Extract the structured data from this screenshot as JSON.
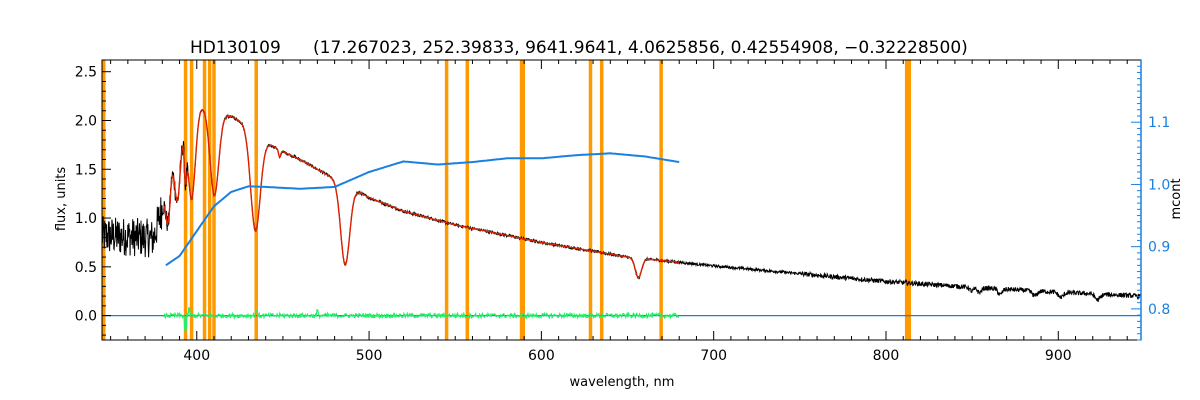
{
  "colors": {
    "observed": "#000000",
    "model": "#dd2200",
    "mcont": "#1a80e0",
    "residual": "#22ee66",
    "mask": "#ff9900",
    "axis": "#000000"
  },
  "chart_data": {
    "type": "line",
    "title_star": "HD130109",
    "title_params": "(17.267023, 252.39833, 9641.9641, 4.0625856, 0.42554908, −0.32228500)",
    "xlabel": "wavelength, nm",
    "ylabel": "flux, units",
    "ylabel_right": "mcont",
    "xlim": [
      345,
      948
    ],
    "ylim": [
      -0.25,
      2.62
    ],
    "ylim_right": [
      0.75,
      1.2
    ],
    "xticks": [
      400,
      500,
      600,
      700,
      800,
      900
    ],
    "xtick_labels": [
      "400",
      "500",
      "600",
      "700",
      "800",
      "900"
    ],
    "yticks": [
      0.0,
      0.5,
      1.0,
      1.5,
      2.0,
      2.5
    ],
    "ytick_labels": [
      "0.0",
      "0.5",
      "1.0",
      "1.5",
      "2.0",
      "2.5"
    ],
    "yticks_right": [
      0.8,
      0.9,
      1.0,
      1.1
    ],
    "ytick_labels_right": [
      "0.8",
      "0.9",
      "1.0",
      "1.1"
    ],
    "grid": false,
    "mask_lines_nm": [
      346,
      393.5,
      397,
      404.5,
      407.5,
      410,
      434.5,
      545,
      557,
      588.5,
      589.5,
      628.5,
      635,
      669.5,
      812,
      813.5
    ],
    "continuum": {
      "x": [
        345,
        360,
        375,
        380,
        385,
        390,
        395,
        398,
        405,
        410,
        420,
        430,
        440,
        450,
        460,
        480,
        500,
        520,
        550,
        600,
        650,
        700,
        750,
        800,
        850,
        900,
        948
      ],
      "y": [
        0.82,
        0.81,
        0.79,
        1.12,
        1.69,
        2.0,
        2.12,
        2.16,
        2.14,
        2.08,
        2.04,
        1.95,
        1.78,
        1.68,
        1.6,
        1.4,
        1.21,
        1.07,
        0.93,
        0.75,
        0.6,
        0.51,
        0.43,
        0.35,
        0.29,
        0.24,
        0.2
      ]
    },
    "absorption_lines": [
      {
        "nm": 383.5,
        "depth": 0.55,
        "width": 1.4
      },
      {
        "nm": 388.9,
        "depth": 0.75,
        "width": 1.8
      },
      {
        "nm": 393.4,
        "depth": 0.45,
        "width": 0.7
      },
      {
        "nm": 397.0,
        "depth": 0.95,
        "width": 2.2
      },
      {
        "nm": 410.2,
        "depth": 0.85,
        "width": 2.5
      },
      {
        "nm": 434.0,
        "depth": 1.01,
        "width": 2.8
      },
      {
        "nm": 448.1,
        "depth": 0.08,
        "width": 0.6
      },
      {
        "nm": 486.1,
        "depth": 0.82,
        "width": 2.6
      },
      {
        "nm": 656.3,
        "depth": 0.2,
        "width": 1.8
      },
      {
        "nm": 849.8,
        "depth": 0.04,
        "width": 1.2
      },
      {
        "nm": 854.2,
        "depth": 0.05,
        "width": 1.2
      },
      {
        "nm": 866.2,
        "depth": 0.06,
        "width": 1.2
      },
      {
        "nm": 886.3,
        "depth": 0.05,
        "width": 1.5
      },
      {
        "nm": 901.5,
        "depth": 0.05,
        "width": 1.5
      },
      {
        "nm": 922.9,
        "depth": 0.06,
        "width": 1.5
      }
    ],
    "model_range": [
      381,
      680
    ],
    "mcont_curve": {
      "x": [
        382,
        390,
        400,
        410,
        420,
        430,
        440,
        460,
        480,
        500,
        520,
        540,
        560,
        580,
        600,
        620,
        640,
        660,
        680
      ],
      "y": [
        0.87,
        0.885,
        0.925,
        0.965,
        0.988,
        0.997,
        0.996,
        0.993,
        0.996,
        1.02,
        1.037,
        1.032,
        1.036,
        1.042,
        1.042,
        1.047,
        1.05,
        1.045,
        1.036
      ]
    },
    "residual_range": [
      381,
      680
    ],
    "residual_spikes": [
      {
        "nm": 393.4,
        "value": -0.15
      },
      {
        "nm": 395.5,
        "value": 0.08
      },
      {
        "nm": 434.5,
        "value": 0.05
      },
      {
        "nm": 470.0,
        "value": 0.06
      }
    ]
  }
}
